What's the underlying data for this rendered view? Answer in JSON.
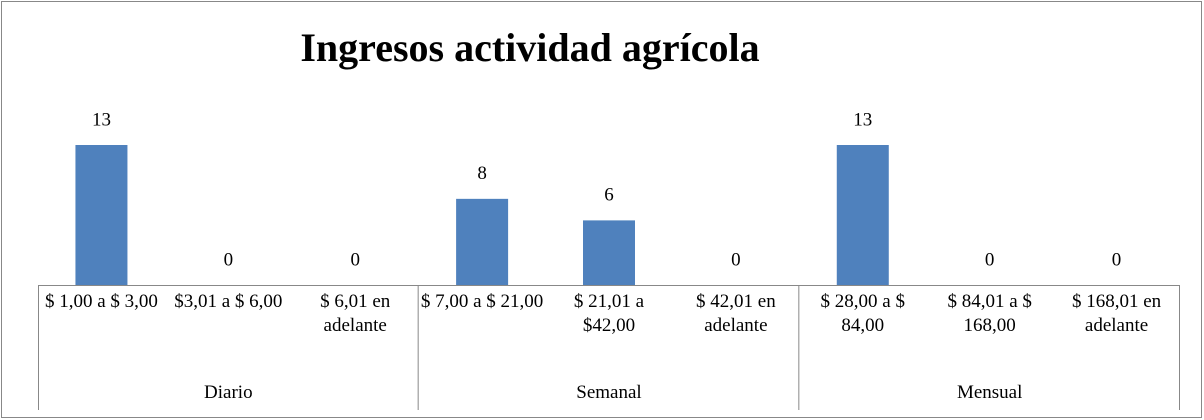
{
  "chart_data": {
    "type": "bar",
    "title": "Ingresos actividad agrícola",
    "categories": [
      "$ 1,00 a $ 3,00",
      "$3,01 a $ 6,00",
      "$ 6,01 en adelante",
      "$ 7,00 a $ 21,00",
      "$ 21,01 a $42,00",
      "$ 42,01 en adelante",
      "$ 28,00 a $ 84,00",
      "$ 84,01 a $ 168,00",
      "$ 168,01 en adelante"
    ],
    "groups": [
      {
        "name": "Diario",
        "size": 3
      },
      {
        "name": "Semanal",
        "size": 3
      },
      {
        "name": "Mensual",
        "size": 3
      }
    ],
    "values": [
      13,
      0,
      0,
      8,
      6,
      0,
      13,
      0,
      0
    ],
    "color": "#4f81bd"
  }
}
